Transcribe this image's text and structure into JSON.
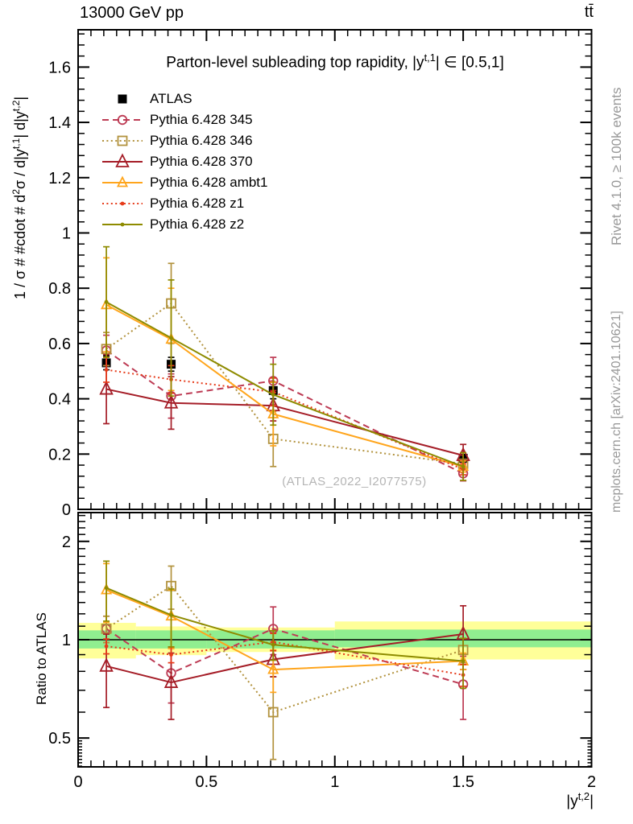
{
  "header": {
    "left": "13000 GeV pp",
    "right": "tt̄"
  },
  "side_notes": {
    "top_right": "Rivet 4.1.0, ≥ 100k events",
    "bottom_right": "mcplots.cern.ch [arXiv:2401.10621]"
  },
  "watermark": "(ATLAS_2022_I2077575)",
  "chart_data": {
    "type": "line",
    "title": "Parton-level subleading top rapidity, |y^{t,1}| ∈ [0.5,1]",
    "ylabel_main": "1 / σ # #cdot # d^{2}σ / d|y^{t,1}| d|y^{t,2}|",
    "ylabel_ratio": "Ratio to ATLAS",
    "xlabel": "|y^{t,2}|",
    "grid": false,
    "legend_position": "top-left",
    "xlim": [
      0,
      2
    ],
    "ylim_main": [
      0,
      1.735
    ],
    "ylim_ratio": [
      0.408,
      2.45
    ],
    "ratio_scale": "log",
    "x_tick_values": [
      0,
      0.5,
      1,
      1.5,
      2
    ],
    "x_tick_labels": [
      "0",
      "0.5",
      "1",
      "1.5",
      "2"
    ],
    "y_tick_values_main": [
      0,
      0.2,
      0.4,
      0.6,
      0.8,
      1,
      1.2,
      1.4,
      1.6
    ],
    "y_tick_labels_main": [
      "0",
      "0.2",
      "0.4",
      "0.6",
      "0.8",
      "1",
      "1.2",
      "1.4",
      "1.6"
    ],
    "y_tick_values_ratio": [
      0.5,
      1,
      2
    ],
    "y_tick_labels_ratio": [
      "0.5",
      "1",
      "2"
    ],
    "x": [
      0.11,
      0.3625,
      0.76,
      1.5
    ],
    "series": [
      {
        "name": "ATLAS",
        "color": "#000000",
        "line": "none",
        "marker": "filled-square",
        "main_y": [
          0.53,
          0.525,
          0.43,
          0.185
        ],
        "main_err": [
          0.025,
          0.025,
          0.03,
          0.013
        ],
        "ratio_y": null,
        "ratio_err": null
      },
      {
        "name": "Pythia 6.428 345",
        "color": "#bd3b54",
        "line": "dashed",
        "marker": "open-circle",
        "main_y": [
          0.575,
          0.41,
          0.465,
          0.13
        ],
        "main_err": [
          0.055,
          0.08,
          0.085,
          0.027
        ],
        "ratio_y": [
          1.08,
          0.79,
          1.08,
          0.73
        ],
        "ratio_err": [
          0.1,
          0.15,
          0.18,
          0.16
        ]
      },
      {
        "name": "Pythia 6.428 346",
        "color": "#b2923d",
        "line": "dotted",
        "marker": "open-square",
        "main_y": [
          0.58,
          0.745,
          0.255,
          0.165
        ],
        "main_err": [
          0.06,
          0.145,
          0.1,
          0.016
        ],
        "ratio_y": [
          1.08,
          1.46,
          0.6,
          0.93
        ],
        "ratio_err": [
          0.1,
          0.22,
          0.17,
          0.08
        ]
      },
      {
        "name": "Pythia 6.428 370",
        "color": "#a51d27",
        "line": "solid",
        "marker": "open-triangle",
        "main_y": [
          0.435,
          0.385,
          0.375,
          0.195
        ],
        "main_err": [
          0.125,
          0.095,
          0.055,
          0.04
        ],
        "ratio_y": [
          0.83,
          0.74,
          0.87,
          1.04
        ],
        "ratio_err": [
          0.21,
          0.17,
          0.1,
          0.23
        ]
      },
      {
        "name": "Pythia 6.428 ambt1",
        "color": "#ffa51c",
        "line": "solid",
        "marker": "open-triangle-small",
        "main_y": [
          0.74,
          0.615,
          0.345,
          0.155
        ],
        "main_err": [
          0.17,
          0.185,
          0.115,
          0.02
        ],
        "ratio_y": [
          1.42,
          1.18,
          0.81,
          0.86
        ],
        "ratio_err": [
          0.29,
          0.24,
          0.12,
          0.05
        ]
      },
      {
        "name": "Pythia 6.428 z1",
        "color": "#e63b1a",
        "line": "dotted",
        "marker": "dot",
        "main_y": [
          0.505,
          0.47,
          0.425,
          0.145
        ],
        "main_err": [
          0.045,
          0.05,
          0.05,
          0.02
        ],
        "ratio_y": [
          0.955,
          0.9,
          0.985,
          0.78
        ],
        "ratio_err": [
          0.05,
          0.05,
          0.06,
          0.06
        ]
      },
      {
        "name": "Pythia 6.428 z2",
        "color": "#8e8b00",
        "line": "solid",
        "marker": "dot",
        "main_y": [
          0.75,
          0.62,
          0.415,
          0.155
        ],
        "main_err": [
          0.2,
          0.21,
          0.11,
          0.05
        ],
        "ratio_y": [
          1.44,
          1.19,
          0.965,
          0.86
        ],
        "ratio_err": [
          0.3,
          0.24,
          0.1,
          0.15
        ]
      }
    ],
    "ratio_bands": [
      {
        "x0": 0,
        "x1": 0.225,
        "yellow": [
          0.876,
          1.126
        ],
        "green": [
          0.94,
          1.068
        ]
      },
      {
        "x0": 0.225,
        "x1": 0.5,
        "yellow": [
          0.897,
          1.098
        ],
        "green": [
          0.94,
          1.068
        ]
      },
      {
        "x0": 0.5,
        "x1": 1.0,
        "yellow": [
          0.917,
          1.09
        ],
        "green": [
          0.94,
          1.068
        ]
      },
      {
        "x0": 1.0,
        "x1": 2.0,
        "yellow": [
          0.87,
          1.137
        ],
        "green": [
          0.948,
          1.074
        ]
      }
    ],
    "band_colors": {
      "yellow": "#ffff99",
      "green": "#90ee90"
    }
  }
}
